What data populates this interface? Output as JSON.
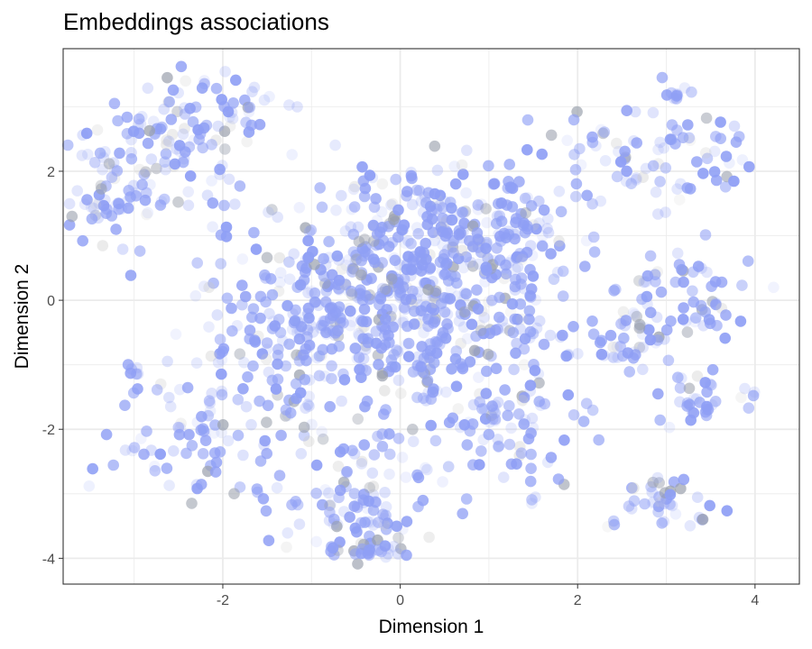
{
  "chart_data": {
    "type": "scatter",
    "title": "Embeddings associations",
    "xlabel": "Dimension 1",
    "ylabel": "Dimension 2",
    "xlim": [
      -3.8,
      4.5
    ],
    "ylim": [
      -4.4,
      3.9
    ],
    "xticks": [
      -2,
      0,
      2,
      4
    ],
    "yticks": [
      -4,
      -2,
      0,
      2
    ],
    "xtick_labels": [
      "-2",
      "0",
      "2",
      "4"
    ],
    "ytick_labels": [
      "-4",
      "-2",
      "0",
      "2"
    ],
    "grid": true,
    "legend": "none",
    "colors": {
      "primary": "#8f9ff5",
      "muted": "#9aa0ad",
      "faint": "#c8c8c8",
      "grid": "#ebebeb",
      "panel_border": "#333333"
    },
    "clusters": [
      {
        "cx": 0.2,
        "cy": 0.0,
        "sx": 0.9,
        "sy": 1.0,
        "n": 520
      },
      {
        "cx": -1.0,
        "cy": -0.5,
        "sx": 0.8,
        "sy": 0.9,
        "n": 200
      },
      {
        "cx": 0.8,
        "cy": 1.1,
        "sx": 0.6,
        "sy": 0.6,
        "n": 160
      },
      {
        "cx": -0.5,
        "cy": -3.2,
        "sx": 0.5,
        "sy": 0.45,
        "n": 100
      },
      {
        "cx": -2.8,
        "cy": 2.3,
        "sx": 0.55,
        "sy": 0.5,
        "n": 90
      },
      {
        "cx": -2.2,
        "cy": 2.9,
        "sx": 0.4,
        "sy": 0.3,
        "n": 50
      },
      {
        "cx": -3.3,
        "cy": 1.5,
        "sx": 0.25,
        "sy": 0.3,
        "n": 45
      },
      {
        "cx": 2.9,
        "cy": 2.3,
        "sx": 0.6,
        "sy": 0.4,
        "n": 80
      },
      {
        "cx": 3.1,
        "cy": 0.1,
        "sx": 0.45,
        "sy": 0.35,
        "n": 65
      },
      {
        "cx": 3.4,
        "cy": -1.5,
        "sx": 0.3,
        "sy": 0.25,
        "n": 35
      },
      {
        "cx": 3.0,
        "cy": -3.1,
        "sx": 0.35,
        "sy": 0.25,
        "n": 40
      },
      {
        "cx": 2.5,
        "cy": -0.7,
        "sx": 0.35,
        "sy": 0.3,
        "n": 35
      },
      {
        "cx": -2.3,
        "cy": -2.1,
        "sx": 0.45,
        "sy": 0.45,
        "n": 70
      },
      {
        "cx": 1.3,
        "cy": -2.0,
        "sx": 0.4,
        "sy": 0.5,
        "n": 70
      },
      {
        "cx": -3.0,
        "cy": -1.1,
        "sx": 0.06,
        "sy": 0.05,
        "n": 6
      },
      {
        "cx": 3.1,
        "cy": 3.2,
        "sx": 0.12,
        "sy": 0.06,
        "n": 10
      },
      {
        "cx": -0.3,
        "cy": -3.9,
        "sx": 0.25,
        "sy": 0.1,
        "n": 25
      }
    ]
  }
}
